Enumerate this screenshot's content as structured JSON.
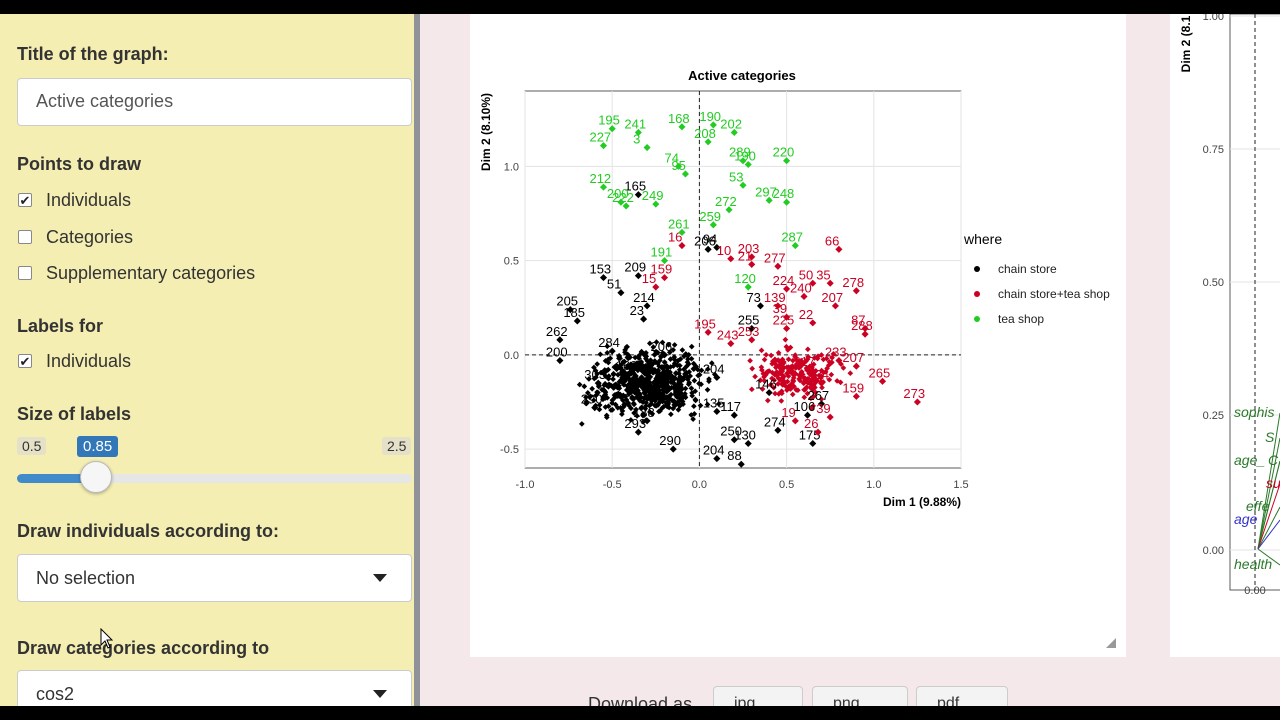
{
  "sidebar": {
    "title_label": "Title of the graph:",
    "title_value": "Active categories",
    "points_label": "Points to draw",
    "points": [
      {
        "label": "Individuals",
        "checked": true
      },
      {
        "label": "Categories",
        "checked": false
      },
      {
        "label": "Supplementary categories",
        "checked": false
      }
    ],
    "labels_for": "Labels for",
    "labels_items": [
      {
        "label": "Individuals",
        "checked": true
      }
    ],
    "size_label": "Size of labels",
    "slider": {
      "min": "0.5",
      "value": "0.85",
      "max": "2.5"
    },
    "draw_ind_label": "Draw individuals according to:",
    "draw_ind_value": "No selection",
    "draw_cat_label": "Draw categories according to",
    "draw_cat_value": "cos2"
  },
  "download": {
    "label": "Download as",
    "buttons": [
      "jpg",
      "png",
      "pdf"
    ]
  },
  "colors": {
    "chain": "#000000",
    "both": "#cc0022",
    "tea": "#22cc22",
    "sidebar": "#f5eeb2"
  },
  "chart_data": {
    "type": "scatter",
    "title": "Active categories",
    "xlabel": "Dim 1 (9.88%)",
    "ylabel": "Dim 2 (8.10%)",
    "xlim": [
      -1.0,
      1.5
    ],
    "ylim": [
      -0.6,
      1.4
    ],
    "xticks": [
      "-1.0",
      "-0.5",
      "0.0",
      "0.5",
      "1.0",
      "1.5"
    ],
    "yticks": [
      "-0.5",
      "0.0",
      "0.5",
      "1.0"
    ],
    "grid": true,
    "legend_title": "where",
    "legend_position": "right",
    "series": [
      {
        "name": "chain store",
        "color": "#000000",
        "points": [
          {
            "x": 0.05,
            "y": 0.56,
            "label": "206"
          },
          {
            "x": 0.1,
            "y": 0.57,
            "label": "94"
          },
          {
            "x": -0.35,
            "y": 0.85,
            "label": "165"
          },
          {
            "x": -0.35,
            "y": 0.42,
            "label": "209"
          },
          {
            "x": -0.55,
            "y": 0.41,
            "label": "153"
          },
          {
            "x": -0.45,
            "y": 0.33,
            "label": "51"
          },
          {
            "x": -0.74,
            "y": 0.24,
            "label": "205"
          },
          {
            "x": -0.32,
            "y": 0.19,
            "label": "23"
          },
          {
            "x": -0.8,
            "y": 0.08,
            "label": "262"
          },
          {
            "x": -0.8,
            "y": -0.03,
            "label": "200"
          },
          {
            "x": -0.58,
            "y": -0.15,
            "label": "303"
          },
          {
            "x": -0.6,
            "y": -0.28,
            "label": "290"
          },
          {
            "x": -0.35,
            "y": -0.41,
            "label": "293"
          },
          {
            "x": -0.15,
            "y": -0.5,
            "label": "290"
          },
          {
            "x": 0.1,
            "y": -0.55,
            "label": "204"
          },
          {
            "x": 0.24,
            "y": -0.58,
            "label": "88"
          },
          {
            "x": 0.2,
            "y": -0.45,
            "label": "250"
          },
          {
            "x": 0.28,
            "y": -0.47,
            "label": "130"
          },
          {
            "x": 0.45,
            "y": -0.4,
            "label": "274"
          },
          {
            "x": 0.65,
            "y": -0.47,
            "label": "175"
          },
          {
            "x": 0.7,
            "y": -0.26,
            "label": "267"
          },
          {
            "x": 0.62,
            "y": -0.32,
            "label": "106"
          },
          {
            "x": 0.1,
            "y": -0.12,
            "label": "204"
          },
          {
            "x": -0.2,
            "y": 0.0,
            "label": "206"
          },
          {
            "x": 0.35,
            "y": 0.26,
            "label": "73"
          },
          {
            "x": -0.3,
            "y": 0.26,
            "label": "214"
          },
          {
            "x": -0.7,
            "y": 0.18,
            "label": "185"
          },
          {
            "x": -0.4,
            "y": -0.1,
            "label": "169"
          },
          {
            "x": 0.2,
            "y": -0.32,
            "label": "117"
          },
          {
            "x": 0.4,
            "y": -0.2,
            "label": "146"
          },
          {
            "x": -0.25,
            "y": -0.22,
            "label": "291"
          },
          {
            "x": 0.1,
            "y": -0.3,
            "label": "135"
          },
          {
            "x": -0.5,
            "y": 0.02,
            "label": "284"
          },
          {
            "x": -0.3,
            "y": -0.35,
            "label": "188"
          },
          {
            "x": 0.3,
            "y": 0.14,
            "label": "255"
          }
        ]
      },
      {
        "name": "chain store+tea shop",
        "color": "#cc0022",
        "points": [
          {
            "x": 0.8,
            "y": 0.56,
            "label": "66"
          },
          {
            "x": 0.18,
            "y": 0.51,
            "label": "10"
          },
          {
            "x": 0.45,
            "y": 0.47,
            "label": "277"
          },
          {
            "x": 0.3,
            "y": 0.48,
            "label": "21"
          },
          {
            "x": -0.1,
            "y": 0.58,
            "label": "16"
          },
          {
            "x": -0.2,
            "y": 0.41,
            "label": "159"
          },
          {
            "x": -0.25,
            "y": 0.36,
            "label": "15"
          },
          {
            "x": 0.65,
            "y": 0.38,
            "label": "50"
          },
          {
            "x": 0.75,
            "y": 0.38,
            "label": "35"
          },
          {
            "x": 0.9,
            "y": 0.34,
            "label": "278"
          },
          {
            "x": 0.5,
            "y": 0.35,
            "label": "224"
          },
          {
            "x": 0.6,
            "y": 0.31,
            "label": "240"
          },
          {
            "x": 0.78,
            "y": 0.26,
            "label": "207"
          },
          {
            "x": 0.45,
            "y": 0.26,
            "label": "139"
          },
          {
            "x": 0.5,
            "y": 0.2,
            "label": "39"
          },
          {
            "x": 0.65,
            "y": 0.17,
            "label": "22"
          },
          {
            "x": 0.5,
            "y": 0.14,
            "label": "225"
          },
          {
            "x": 0.95,
            "y": 0.14,
            "label": "87"
          },
          {
            "x": 0.95,
            "y": 0.11,
            "label": "288"
          },
          {
            "x": 0.3,
            "y": 0.08,
            "label": "253"
          },
          {
            "x": 0.05,
            "y": 0.12,
            "label": "195"
          },
          {
            "x": 0.18,
            "y": 0.06,
            "label": "243"
          },
          {
            "x": 0.8,
            "y": -0.03,
            "label": "233"
          },
          {
            "x": 0.9,
            "y": -0.06,
            "label": "207"
          },
          {
            "x": 1.05,
            "y": -0.14,
            "label": "265"
          },
          {
            "x": 1.25,
            "y": -0.25,
            "label": "273"
          },
          {
            "x": 0.9,
            "y": -0.22,
            "label": "159"
          },
          {
            "x": 0.7,
            "y": -0.15,
            "label": "234"
          },
          {
            "x": 0.62,
            "y": -0.08,
            "label": "217"
          },
          {
            "x": 0.75,
            "y": -0.33,
            "label": "39"
          },
          {
            "x": 0.68,
            "y": -0.41,
            "label": "26"
          },
          {
            "x": 0.55,
            "y": -0.35,
            "label": "19"
          },
          {
            "x": 0.3,
            "y": 0.52,
            "label": "203"
          }
        ]
      },
      {
        "name": "tea shop",
        "color": "#22cc22",
        "points": [
          {
            "x": -0.5,
            "y": 1.2,
            "label": "195"
          },
          {
            "x": -0.35,
            "y": 1.18,
            "label": "241"
          },
          {
            "x": -0.55,
            "y": 1.11,
            "label": "227"
          },
          {
            "x": -0.3,
            "y": 1.1,
            "label": "3"
          },
          {
            "x": -0.1,
            "y": 1.21,
            "label": "168"
          },
          {
            "x": 0.08,
            "y": 1.22,
            "label": "190"
          },
          {
            "x": 0.2,
            "y": 1.18,
            "label": "202"
          },
          {
            "x": 0.05,
            "y": 1.13,
            "label": "208"
          },
          {
            "x": -0.12,
            "y": 1.0,
            "label": "74"
          },
          {
            "x": -0.08,
            "y": 0.96,
            "label": "95"
          },
          {
            "x": 0.25,
            "y": 1.03,
            "label": "289"
          },
          {
            "x": 0.28,
            "y": 1.01,
            "label": "190"
          },
          {
            "x": 0.5,
            "y": 1.03,
            "label": "220"
          },
          {
            "x": 0.25,
            "y": 0.9,
            "label": "53"
          },
          {
            "x": -0.55,
            "y": 0.89,
            "label": "212"
          },
          {
            "x": -0.45,
            "y": 0.81,
            "label": "200"
          },
          {
            "x": -0.42,
            "y": 0.79,
            "label": "222"
          },
          {
            "x": -0.25,
            "y": 0.8,
            "label": "249"
          },
          {
            "x": 0.17,
            "y": 0.77,
            "label": "272"
          },
          {
            "x": 0.4,
            "y": 0.82,
            "label": "297"
          },
          {
            "x": 0.5,
            "y": 0.81,
            "label": "248"
          },
          {
            "x": -0.1,
            "y": 0.65,
            "label": "261"
          },
          {
            "x": 0.08,
            "y": 0.69,
            "label": "259"
          },
          {
            "x": 0.55,
            "y": 0.58,
            "label": "287"
          },
          {
            "x": -0.2,
            "y": 0.5,
            "label": "191"
          },
          {
            "x": 0.28,
            "y": 0.36,
            "label": "120"
          }
        ]
      }
    ],
    "cloud_seed": 7
  },
  "right_chart": {
    "ylabel": "Dim 2 (8.1",
    "yticks": [
      "1.00",
      "0.75",
      "0.50",
      "0.25",
      "0.00"
    ],
    "xticks": [
      "0.00"
    ],
    "labels": [
      "sophis",
      "S",
      "age_",
      "C",
      "suga",
      "effe",
      "age",
      "health"
    ]
  }
}
